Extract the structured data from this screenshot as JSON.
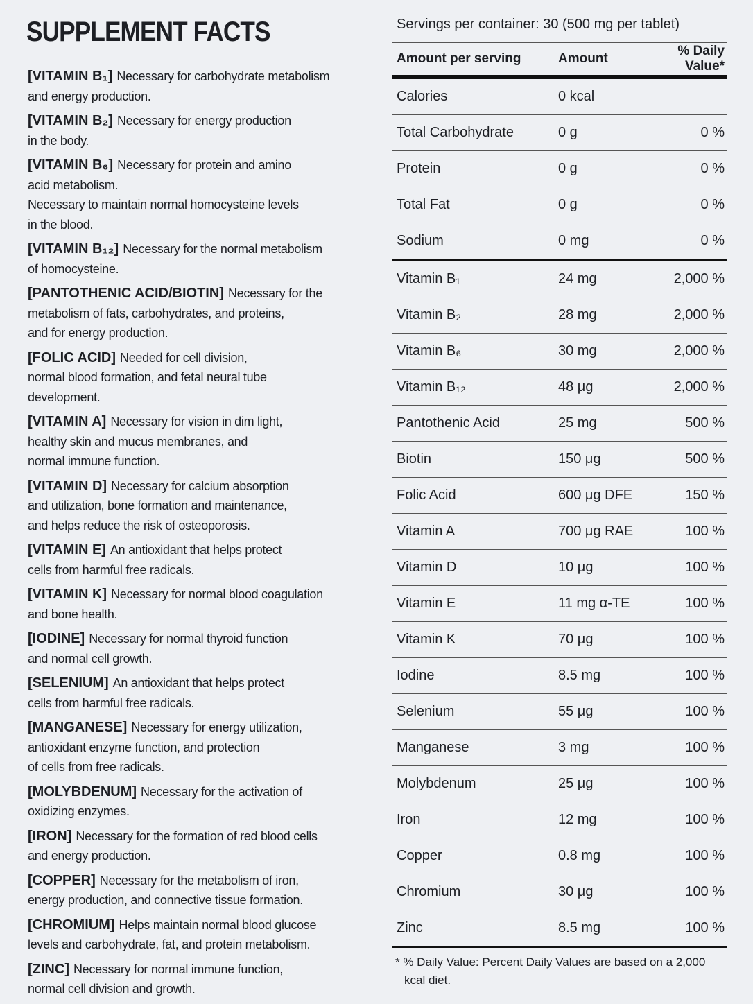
{
  "header": {
    "title": "SUPPLEMENT FACTS"
  },
  "benefits": [
    {
      "label": "[VITAMIN B₁]",
      "lines": [
        "Necessary for carbohydrate metabolism",
        "and energy production."
      ]
    },
    {
      "label": "[VITAMIN B₂]",
      "lines": [
        "Necessary for energy production",
        "in the body."
      ]
    },
    {
      "label": "[VITAMIN B₆]",
      "lines": [
        "Necessary for protein and amino",
        "acid metabolism.",
        "Necessary to maintain normal homocysteine levels",
        "in the blood."
      ]
    },
    {
      "label": "[VITAMIN B₁₂]",
      "lines": [
        "Necessary for the normal metabolism",
        "of homocysteine."
      ]
    },
    {
      "label": "[PANTOTHENIC ACID/BIOTIN]",
      "lines": [
        "Necessary for the",
        "metabolism of fats, carbohydrates, and proteins,",
        "and for energy production."
      ]
    },
    {
      "label": "[FOLIC ACID]",
      "lines": [
        "Needed for cell division,",
        "normal blood formation, and fetal neural tube",
        "development."
      ]
    },
    {
      "label": "[VITAMIN A]",
      "lines": [
        "Necessary for vision in dim light,",
        "healthy skin and mucus membranes, and",
        "normal immune function."
      ]
    },
    {
      "label": "[VITAMIN D]",
      "lines": [
        "Necessary for calcium absorption",
        "and utilization, bone formation and maintenance,",
        "and helps reduce the risk of osteoporosis."
      ]
    },
    {
      "label": "[VITAMIN E]",
      "lines": [
        "An antioxidant that helps protect",
        "cells from harmful free radicals."
      ]
    },
    {
      "label": "[VITAMIN K]",
      "lines": [
        "Necessary for normal blood coagulation",
        "and bone health."
      ]
    },
    {
      "label": "[IODINE]",
      "lines": [
        "Necessary for normal thyroid function",
        "and normal cell growth."
      ]
    },
    {
      "label": "[SELENIUM]",
      "lines": [
        "An antioxidant that helps protect",
        "cells from harmful free radicals."
      ]
    },
    {
      "label": "[MANGANESE]",
      "lines": [
        "Necessary for energy utilization,",
        "antioxidant enzyme function, and protection",
        "of cells from free radicals."
      ]
    },
    {
      "label": "[MOLYBDENUM]",
      "lines": [
        "Necessary for the activation of",
        "oxidizing enzymes."
      ]
    },
    {
      "label": "[IRON]",
      "lines": [
        "Necessary for the formation of red blood cells",
        "and energy production."
      ]
    },
    {
      "label": "[COPPER]",
      "lines": [
        "Necessary for the metabolism of iron,",
        "energy production, and connective tissue formation."
      ]
    },
    {
      "label": "[CHROMIUM]",
      "lines": [
        "Helps maintain normal blood glucose",
        "levels and carbohydrate, fat, and protein metabolism."
      ]
    },
    {
      "label": "[ZINC]",
      "lines": [
        "Necessary for normal immune function,",
        "normal cell division and growth."
      ]
    }
  ],
  "table": {
    "servings": "Servings per container: 30 (500 mg per tablet)",
    "columns": [
      "Amount per serving",
      "Amount",
      "% Daily Value*"
    ],
    "macro_rows": [
      [
        "Calories",
        "0 kcal",
        null
      ],
      [
        "Total Carbohydrate",
        "0 g",
        "0 %"
      ],
      [
        "Protein",
        "0 g",
        "0 %"
      ],
      [
        "Total Fat",
        "0 g",
        "0 %"
      ],
      [
        "Sodium",
        "0 mg",
        "0 %"
      ]
    ],
    "micro_rows": [
      [
        "Vitamin B₁",
        "24 mg",
        "2,000 %"
      ],
      [
        "Vitamin B₂",
        "28 mg",
        "2,000 %"
      ],
      [
        "Vitamin B₆",
        "30 mg",
        "2,000 %"
      ],
      [
        "Vitamin B₁₂",
        "48 μg",
        "2,000 %"
      ],
      [
        "Pantothenic Acid",
        "25 mg",
        "500 %"
      ],
      [
        "Biotin",
        "150 μg",
        "500 %"
      ],
      [
        "Folic Acid",
        "600 μg DFE",
        "150 %"
      ],
      [
        "Vitamin A",
        "700 μg RAE",
        "100 %"
      ],
      [
        "Vitamin D",
        "10 μg",
        "100 %"
      ],
      [
        "Vitamin E",
        "11 mg α-TE",
        "100 %"
      ],
      [
        "Vitamin K",
        "70 μg",
        "100 %"
      ],
      [
        "Iodine",
        "8.5 mg",
        "100 %"
      ],
      [
        "Selenium",
        "55 μg",
        "100 %"
      ],
      [
        "Manganese",
        "3 mg",
        "100 %"
      ],
      [
        "Molybdenum",
        "25 μg",
        "100 %"
      ],
      [
        "Iron",
        "12 mg",
        "100 %"
      ],
      [
        "Copper",
        "0.8 mg",
        "100 %"
      ],
      [
        "Chromium",
        "30 μg",
        "100 %"
      ],
      [
        "Zinc",
        "8.5 mg",
        "100 %"
      ]
    ],
    "footnote": [
      "* % Daily Value: Percent Daily Values are based on a 2,000",
      "kcal diet."
    ]
  }
}
